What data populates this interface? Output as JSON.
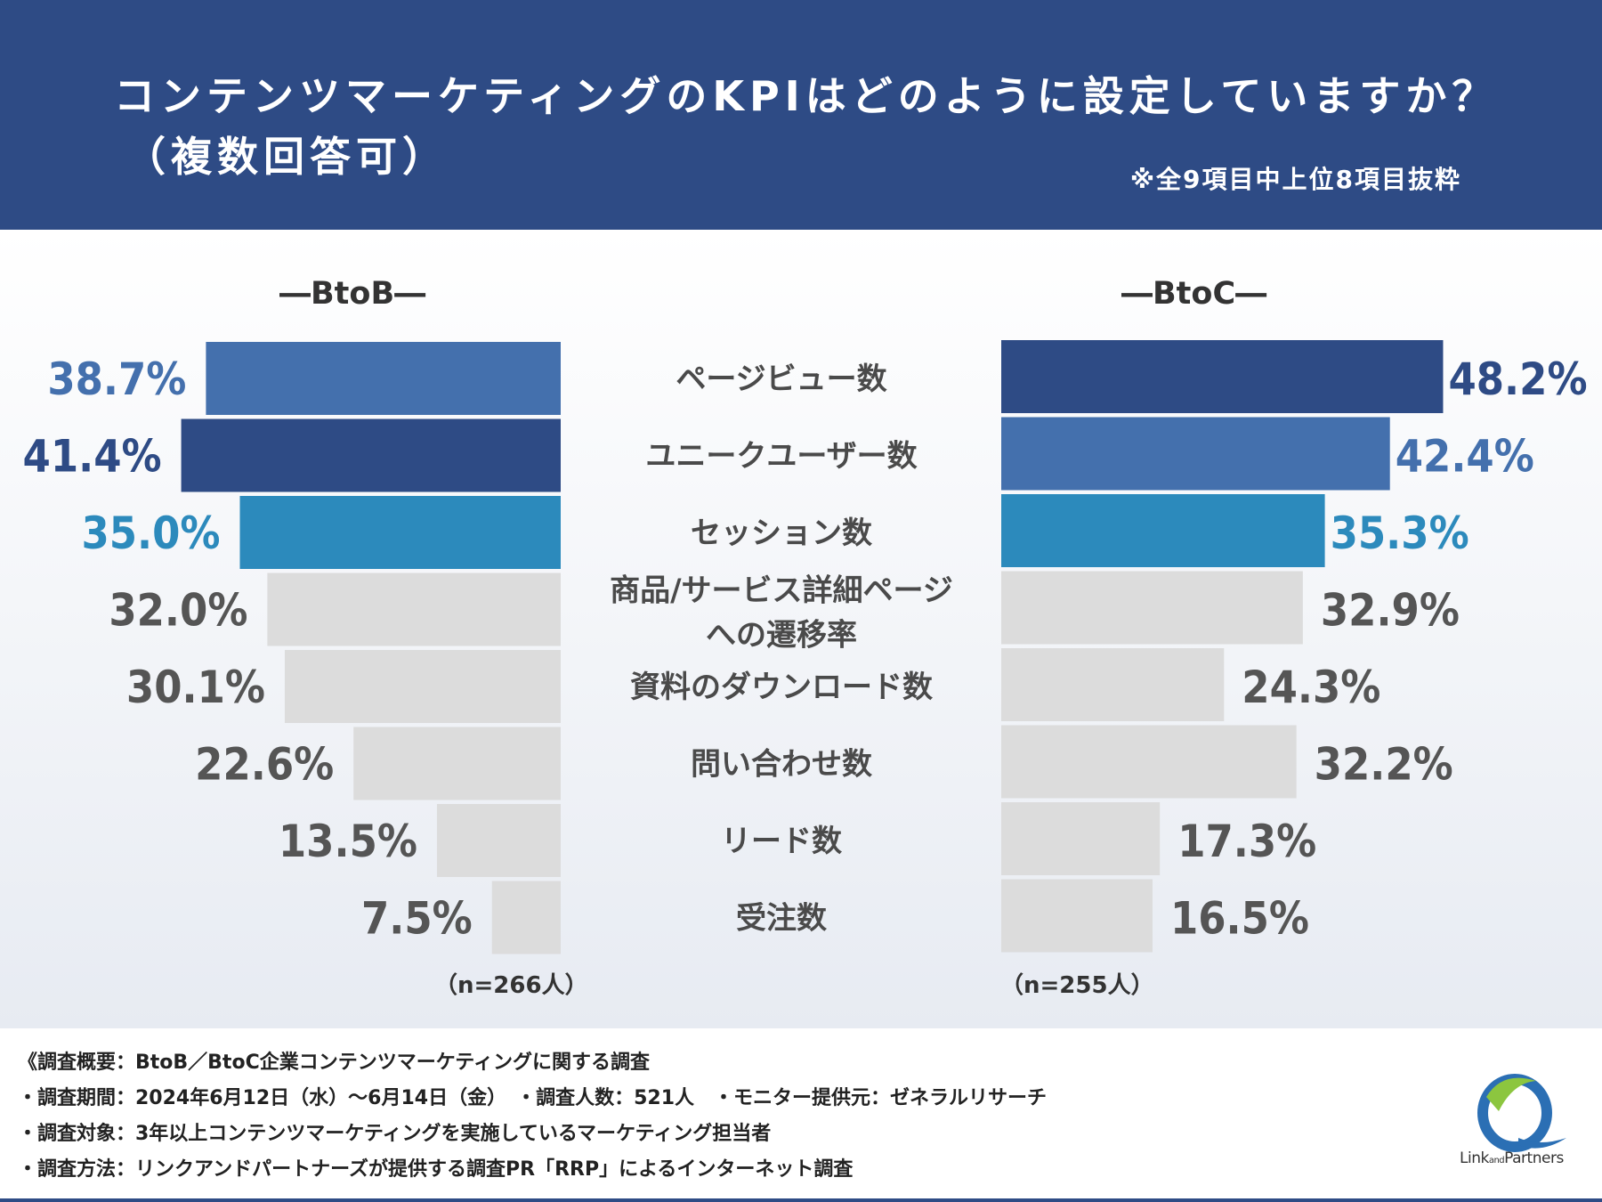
{
  "header": {
    "title_line1": "コンテンツマーケティングのKPIはどのように設定していますか？",
    "title_line2": "（複数回答可）",
    "note": "※全9項目中上位8項目抜粋"
  },
  "colors": {
    "header_bg": "#2e4b85",
    "rank1": "#2e4b85",
    "rank2": "#4470ad",
    "rank3": "#2c8abc",
    "other_bar": "#dcdcdc",
    "other_text": "#555555"
  },
  "chart_data": {
    "type": "bar",
    "orientation": "horizontal-butterfly",
    "categories": [
      "ページビュー数",
      "ユニークユーザー数",
      "セッション数",
      "商品/サービス詳細ページへの遷移率",
      "資料のダウンロード数",
      "問い合わせ数",
      "リード数",
      "受注数"
    ],
    "category_lines": [
      [
        "ページビュー数"
      ],
      [
        "ユニークユーザー数"
      ],
      [
        "セッション数"
      ],
      [
        "商品/サービス詳細ページ",
        "への遷移率"
      ],
      [
        "資料のダウンロード数"
      ],
      [
        "問い合わせ数"
      ],
      [
        "リード数"
      ],
      [
        "受注数"
      ]
    ],
    "series": [
      {
        "name": "BtoB",
        "heading": "―BtoB―",
        "n": "（n=266人）",
        "values": [
          38.7,
          41.4,
          35.0,
          32.0,
          30.1,
          22.6,
          13.5,
          7.5
        ],
        "labels": [
          "38.7%",
          "41.4%",
          "35.0%",
          "32.0%",
          "30.1%",
          "22.6%",
          "13.5%",
          "7.5%"
        ],
        "ranks": [
          2,
          1,
          3,
          0,
          0,
          0,
          0,
          0
        ]
      },
      {
        "name": "BtoC",
        "heading": "―BtoC―",
        "n": "（n=255人）",
        "values": [
          48.2,
          42.4,
          35.3,
          32.9,
          24.3,
          32.2,
          17.3,
          16.5
        ],
        "labels": [
          "48.2%",
          "42.4%",
          "35.3%",
          "32.9%",
          "24.3%",
          "32.2%",
          "17.3%",
          "16.5%"
        ],
        "ranks": [
          1,
          2,
          3,
          0,
          0,
          0,
          0,
          0
        ]
      }
    ],
    "unit": "%",
    "xlim": [
      0,
      50
    ]
  },
  "footer": {
    "lines": [
      "《調査概要：BtoB／BtoC企業コンテンツマーケティングに関する調査",
      "・調査期間：2024年6月12日（水）～6月14日（金）　・調査人数：521人　・モニター提供元：ゼネラルリサーチ",
      "・調査対象：3年以上コンテンツマーケティングを実施しているマーケティング担当者",
      "・調査方法：リンクアンドパートナーズが提供する調査PR「RRP」によるインターネット調査"
    ],
    "logo_text_main": "Link",
    "logo_text_and": "and",
    "logo_text_end": "Partners"
  }
}
